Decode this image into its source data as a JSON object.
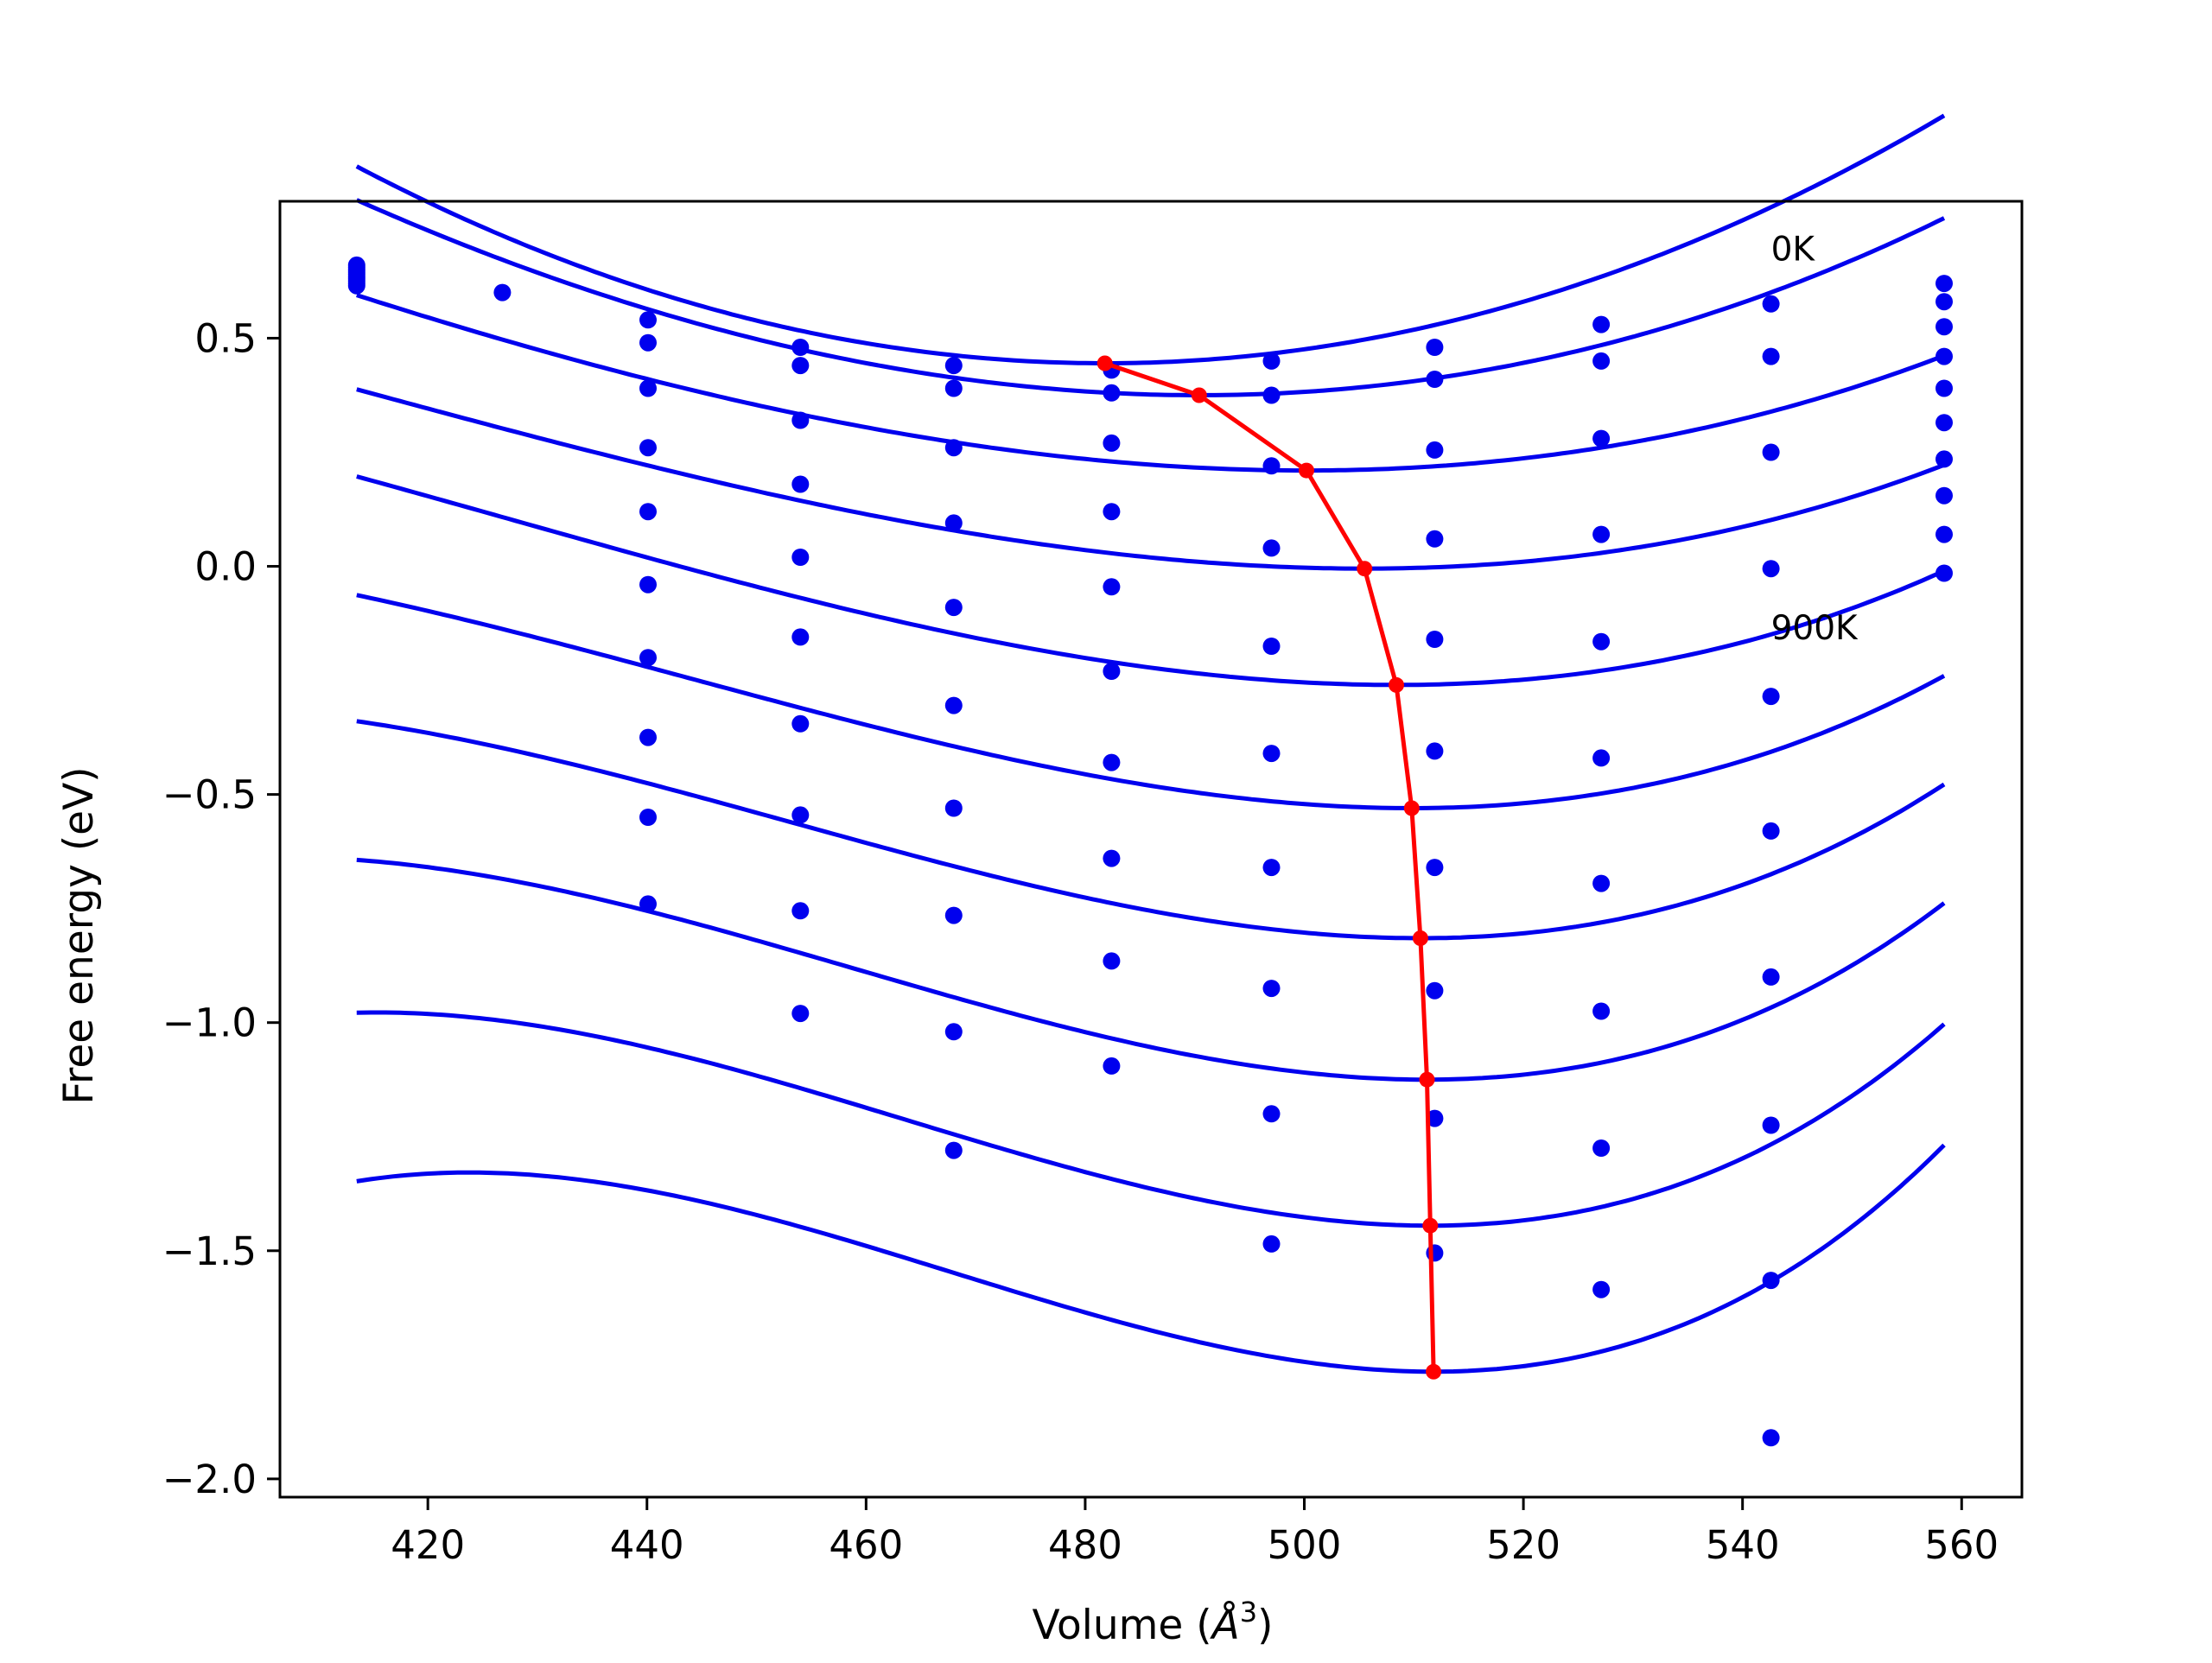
{
  "chart_data": {
    "type": "line",
    "title": "",
    "xlabel": "Volume (Å³)",
    "xlabel_base": "Volume (",
    "xlabel_unit": "Å",
    "xlabel_sup": "3",
    "xlabel_close": ")",
    "ylabel": "Free energy (eV)",
    "xlim": [
      406.5,
      565.5
    ],
    "ylim": [
      -2.04,
      0.8
    ],
    "xticks": [
      420,
      440,
      460,
      480,
      500,
      520,
      540,
      560
    ],
    "xtick_labels": [
      "420",
      "440",
      "460",
      "480",
      "500",
      "520",
      "540",
      "560"
    ],
    "yticks": [
      0.5,
      0.0,
      -0.5,
      -1.0,
      -1.5,
      -2.0
    ],
    "ytick_labels": [
      "0.5",
      "0.0",
      "−0.5",
      "−1.0",
      "−1.5",
      "−2.0"
    ],
    "grid": false,
    "legend": "none",
    "colors": {
      "fit": "#0000ee",
      "data": "#0000ee",
      "minimum": "#ff0000"
    },
    "annotations": [
      {
        "text": "0K",
        "x": 542.6,
        "y": 0.67
      },
      {
        "text": "900K",
        "x": 542.6,
        "y": -0.16
      }
    ],
    "volumes": [
      413.5,
      426.8,
      440.1,
      454.0,
      468.0,
      482.4,
      497.0,
      511.9,
      527.1,
      542.6,
      558.4
    ],
    "series": [
      {
        "values": [
          0.66,
          0.6,
          0.54,
          0.48,
          0.44,
          0.43,
          0.45,
          0.48,
          0.53,
          0.575,
          0.62
        ]
      },
      {
        "values": [
          0.655,
          null,
          0.49,
          0.44,
          0.39,
          0.38,
          0.375,
          0.41,
          0.45,
          0.46,
          0.58
        ]
      },
      {
        "values": [
          0.65,
          null,
          0.39,
          0.32,
          0.26,
          0.27,
          0.22,
          0.255,
          0.28,
          0.25,
          0.525
        ]
      },
      {
        "values": [
          0.645,
          null,
          0.26,
          0.18,
          0.095,
          0.12,
          0.04,
          0.06,
          0.07,
          -0.005,
          0.46
        ]
      },
      {
        "values": [
          0.64,
          null,
          0.12,
          0.02,
          -0.09,
          -0.045,
          -0.175,
          -0.16,
          -0.165,
          -0.285,
          0.39
        ]
      },
      {
        "values": [
          0.635,
          null,
          -0.04,
          -0.155,
          -0.305,
          -0.23,
          -0.41,
          -0.405,
          -0.42,
          -0.58,
          0.315
        ]
      },
      {
        "values": [
          0.63,
          null,
          -0.2,
          -0.345,
          -0.53,
          -0.43,
          -0.66,
          -0.66,
          -0.695,
          -0.9,
          0.235
        ]
      },
      {
        "values": [
          0.625,
          null,
          -0.375,
          -0.545,
          -0.765,
          -0.64,
          -0.925,
          -0.93,
          -0.975,
          -1.225,
          0.155
        ]
      },
      {
        "values": [
          0.62,
          null,
          -0.55,
          -0.755,
          -1.02,
          -0.865,
          -1.2,
          -1.21,
          -1.275,
          -1.565,
          0.07
        ]
      },
      {
        "values": [
          0.615,
          null,
          -0.74,
          -0.98,
          -1.28,
          -1.095,
          -1.485,
          -1.505,
          -1.585,
          -1.91,
          -0.015
        ]
      }
    ],
    "fits": [
      {
        "min_volume": 481.8,
        "min_energy": 0.445,
        "curvature": 9.25e-05,
        "skew": 0
      },
      {
        "min_volume": 490.4,
        "min_energy": 0.375,
        "curvature": 7.85e-05,
        "skew": 8e-07
      },
      {
        "min_volume": 500.2,
        "min_energy": 0.21,
        "curvature": 6.5e-05,
        "skew": 1.6e-06
      },
      {
        "min_volume": 505.5,
        "min_energy": -0.005,
        "curvature": 6.85e-05,
        "skew": 2.4e-06
      },
      {
        "min_volume": 508.4,
        "min_energy": -0.26,
        "curvature": 8.3e-05,
        "skew": 3.4e-06
      },
      {
        "min_volume": 509.8,
        "min_energy": -0.53,
        "curvature": 9.85e-05,
        "skew": 5e-06
      },
      {
        "min_volume": 510.6,
        "min_energy": -0.815,
        "curvature": 0.0001155,
        "skew": 6.7e-06
      },
      {
        "min_volume": 511.2,
        "min_energy": -1.125,
        "curvature": 0.0001335,
        "skew": 8.5e-06
      },
      {
        "min_volume": 511.5,
        "min_energy": -1.445,
        "curvature": 0.0001515,
        "skew": 1.05e-05
      },
      {
        "min_volume": 511.8,
        "min_energy": -1.765,
        "curvature": 0.000169,
        "skew": 1.28e-05
      }
    ],
    "minimum_path": {
      "x": [
        481.8,
        490.4,
        500.2,
        505.5,
        508.4,
        509.8,
        510.6,
        511.2,
        511.5,
        511.8
      ],
      "y": [
        0.445,
        0.375,
        0.21,
        -0.005,
        -0.26,
        -0.53,
        -0.815,
        -1.125,
        -1.445,
        -1.765
      ]
    }
  }
}
